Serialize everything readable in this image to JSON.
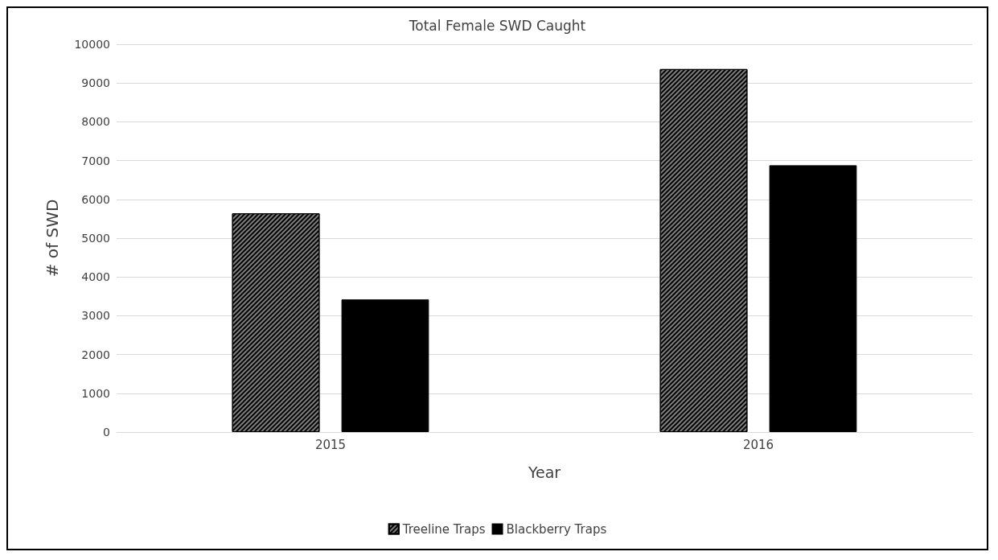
{
  "chart_data": {
    "type": "bar",
    "title": "Total Female SWD Caught",
    "xlabel": "Year",
    "ylabel": "# of SWD",
    "categories": [
      "2015",
      "2016"
    ],
    "series": [
      {
        "name": "Treeline Traps",
        "color": "#808080",
        "values": [
          5640,
          9360
        ]
      },
      {
        "name": "Blackberry Traps",
        "color": "#000000",
        "values": [
          3420,
          6880
        ]
      }
    ],
    "ylim": [
      0,
      10000
    ],
    "yticks": [
      0,
      1000,
      2000,
      3000,
      4000,
      5000,
      6000,
      7000,
      8000,
      9000,
      10000
    ],
    "grid": "y",
    "legend": "bottom"
  }
}
